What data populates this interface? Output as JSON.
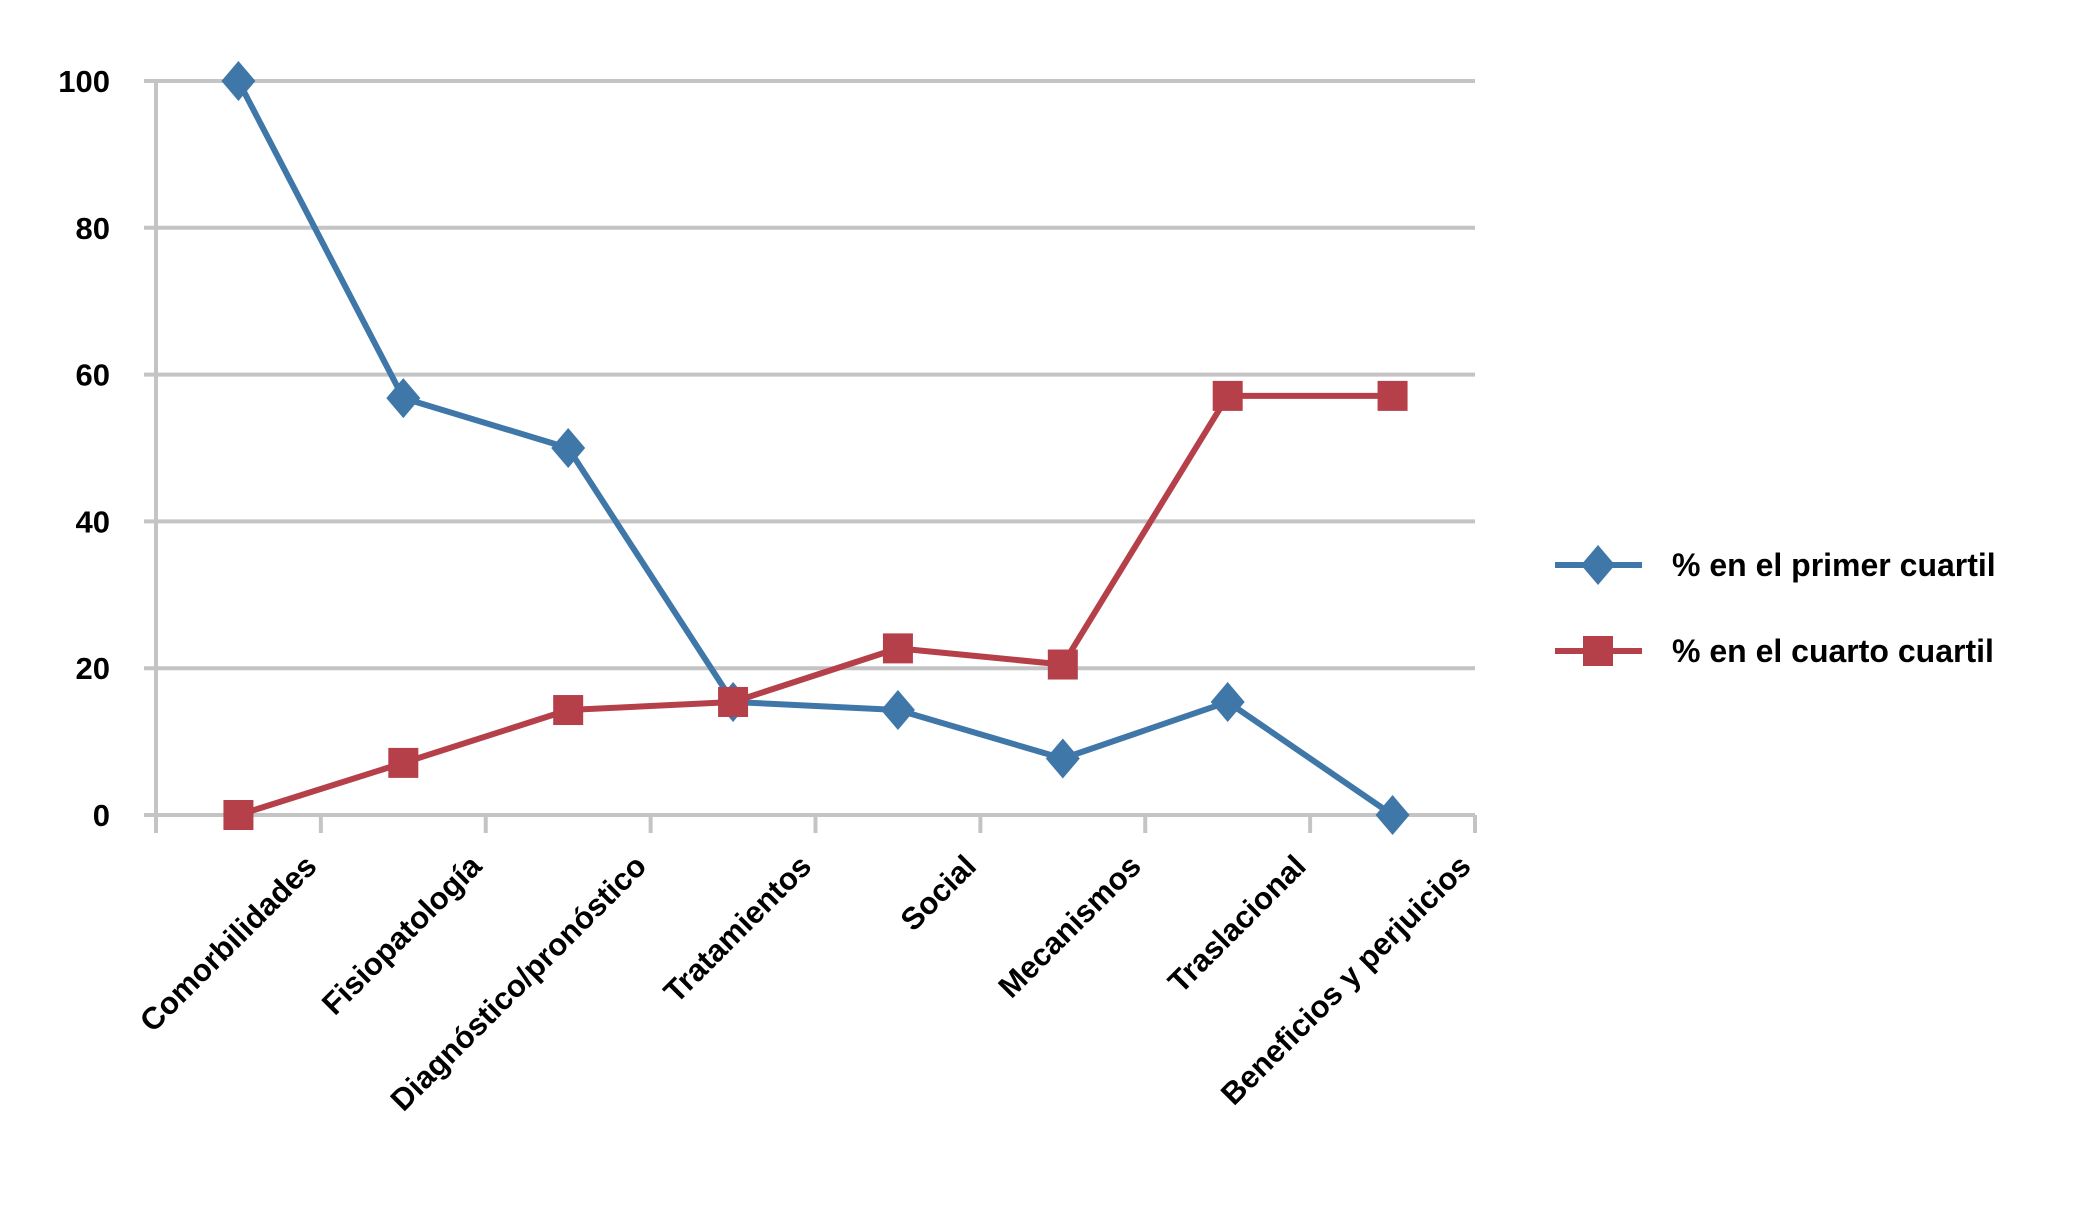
{
  "chart_data": {
    "type": "line",
    "title": "",
    "xlabel": "",
    "ylabel": "",
    "categories": [
      "Comorbilidades",
      "Fisiopatología",
      "Diagnóstico/pronóstico",
      "Tratamientos",
      "Social",
      "Mecanismos",
      "Traslacional",
      "Beneficios y perjuicios"
    ],
    "ylim": [
      0,
      100
    ],
    "yticks": [
      "0",
      "20",
      "40",
      "60",
      "80",
      "100"
    ],
    "grid": "horizontal",
    "legend_position": "right",
    "series": [
      {
        "name": "% en el primer cuartil",
        "color": "#3f77a9",
        "marker": "diamond",
        "values": [
          100,
          56.8,
          50,
          15.4,
          14.3,
          7.7,
          15.4,
          0
        ]
      },
      {
        "name": "% en el cuarto cuartil",
        "color": "#b5404a",
        "marker": "square",
        "values": [
          0,
          7.1,
          14.3,
          15.4,
          22.7,
          20.5,
          57.1,
          57.1
        ]
      }
    ]
  }
}
